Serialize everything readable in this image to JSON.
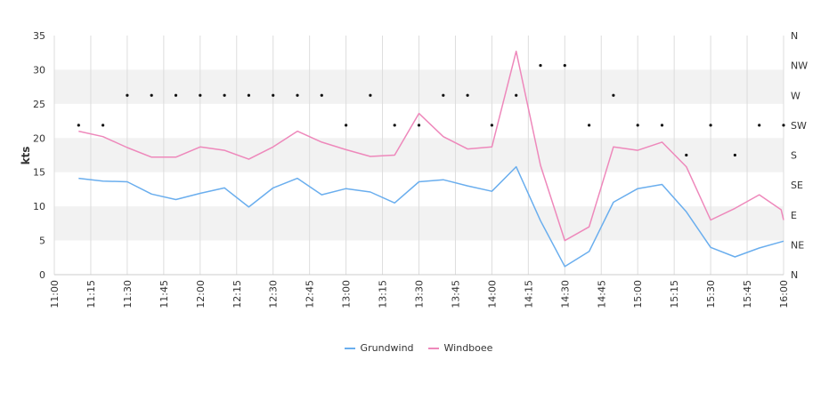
{
  "chart_data": {
    "type": "line",
    "ylabel": "kts",
    "ylim": [
      0,
      35
    ],
    "yticks": [
      0,
      5,
      10,
      15,
      20,
      25,
      30,
      35
    ],
    "x": [
      "11:00",
      "11:05",
      "11:10",
      "11:15",
      "11:20",
      "11:25",
      "11:30",
      "11:35",
      "11:40",
      "11:45",
      "11:50",
      "11:55",
      "12:00",
      "12:05",
      "12:10",
      "12:15",
      "12:20",
      "12:25",
      "12:30",
      "12:35",
      "12:40",
      "12:45",
      "12:50",
      "12:55",
      "13:00",
      "13:05",
      "13:10",
      "13:15",
      "13:20",
      "13:25",
      "13:30",
      "13:35",
      "13:40",
      "13:45",
      "13:50",
      "13:55",
      "14:00",
      "14:05",
      "14:10",
      "14:15",
      "14:20",
      "14:25",
      "14:30",
      "14:35",
      "14:40",
      "14:45",
      "14:50",
      "14:55",
      "15:00",
      "15:05",
      "15:10",
      "15:15",
      "15:20",
      "15:25",
      "15:30",
      "15:35",
      "15:40",
      "15:45",
      "15:50",
      "15:55",
      "16:00"
    ],
    "xticks": [
      "11:00",
      "11:15",
      "11:30",
      "11:45",
      "12:00",
      "12:15",
      "12:30",
      "12:45",
      "13:00",
      "13:15",
      "13:30",
      "13:45",
      "14:00",
      "14:15",
      "14:30",
      "14:45",
      "15:00",
      "15:15",
      "15:30",
      "15:45",
      "16:00"
    ],
    "direction_axis": [
      "N",
      "NE",
      "E",
      "SE",
      "S",
      "SW",
      "W",
      "NW",
      "N"
    ],
    "grid_bands": true,
    "legend_position": "bottom",
    "series": [
      {
        "name": "Grundwind",
        "color": "#6aaeee",
        "x": [
          "11:10",
          "11:20",
          "11:30",
          "11:40",
          "11:50",
          "12:00",
          "12:10",
          "12:20",
          "12:30",
          "12:40",
          "12:50",
          "13:00",
          "13:10",
          "13:20",
          "13:30",
          "13:40",
          "13:50",
          "14:00",
          "14:10",
          "14:20",
          "14:30",
          "14:40",
          "14:50",
          "15:00",
          "15:10",
          "15:20",
          "15:30",
          "15:40",
          "15:50",
          "16:00"
        ],
        "values": [
          14.1,
          13.7,
          13.6,
          11.8,
          11.0,
          11.9,
          12.7,
          9.9,
          12.7,
          14.1,
          11.7,
          12.6,
          12.1,
          10.5,
          13.6,
          13.9,
          13.0,
          12.2,
          15.8,
          7.9,
          1.2,
          3.4,
          10.6,
          12.6,
          13.2,
          9.2,
          4.0,
          2.6,
          3.9,
          4.9
        ]
      },
      {
        "name": "Windboee",
        "color": "#ee88bb",
        "x": [
          "11:10",
          "11:20",
          "11:30",
          "11:40",
          "11:50",
          "12:00",
          "12:10",
          "12:20",
          "12:30",
          "12:40",
          "12:50",
          "13:00",
          "13:10",
          "13:20",
          "13:30",
          "13:40",
          "13:50",
          "14:00",
          "14:10",
          "14:20",
          "14:30",
          "14:40",
          "14:50",
          "15:00",
          "15:10",
          "15:20",
          "15:30",
          "15:40",
          "15:50",
          "15:59",
          "16:00"
        ],
        "values": [
          21.0,
          20.2,
          18.6,
          17.2,
          17.2,
          18.7,
          18.2,
          16.9,
          18.7,
          21.0,
          19.4,
          18.3,
          17.3,
          17.5,
          23.6,
          20.2,
          18.4,
          18.7,
          32.7,
          16.0,
          5.0,
          7.0,
          18.7,
          18.2,
          19.4,
          15.8,
          8.0,
          9.7,
          11.7,
          9.5,
          8.0
        ]
      }
    ],
    "direction_points": {
      "x": [
        "11:10",
        "11:20",
        "11:30",
        "11:40",
        "11:50",
        "12:00",
        "12:10",
        "12:20",
        "12:30",
        "12:40",
        "12:50",
        "13:00",
        "13:10",
        "13:20",
        "13:30",
        "13:40",
        "13:50",
        "14:00",
        "14:10",
        "14:20",
        "14:30",
        "14:40",
        "14:50",
        "15:00",
        "15:10",
        "15:20",
        "15:30",
        "15:40",
        "15:50",
        "16:00"
      ],
      "values": [
        "SW",
        "SW",
        "W",
        "W",
        "W",
        "W",
        "W",
        "W",
        "W",
        "W",
        "W",
        "SW",
        "W",
        "SW",
        "SW",
        "W",
        "W",
        "SW",
        "W",
        "NW",
        "NW",
        "SW",
        "W",
        "SW",
        "SW",
        "S",
        "SW",
        "S",
        "SW",
        "SW"
      ]
    }
  }
}
